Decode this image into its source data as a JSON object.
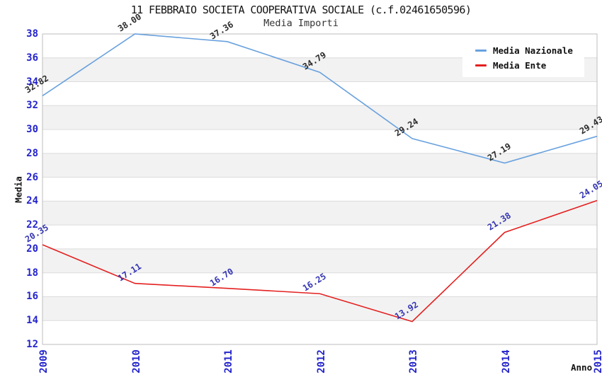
{
  "chart_data": {
    "type": "line",
    "title": "11 FEBBRAIO SOCIETA COOPERATIVA SOCIALE (c.f.02461650596)",
    "subtitle": "Media Importi",
    "xlabel": "Anno",
    "ylabel": "Media",
    "categories": [
      "2009",
      "2010",
      "2011",
      "2012",
      "2013",
      "2014",
      "2015"
    ],
    "series": [
      {
        "name": "Media Nazionale",
        "color": "#68a1de",
        "label_color": "#2b2b2b",
        "values": [
          32.82,
          38.0,
          37.36,
          34.79,
          29.24,
          27.19,
          29.43
        ]
      },
      {
        "name": "Media Ente",
        "color": "#e42020",
        "label_color": "#3333b3",
        "values": [
          20.35,
          17.11,
          16.7,
          16.25,
          13.92,
          21.38,
          24.05
        ]
      }
    ],
    "ylim": [
      12,
      38
    ],
    "yticks": [
      12,
      14,
      16,
      18,
      20,
      22,
      24,
      26,
      28,
      30,
      32,
      34,
      36,
      38
    ],
    "grid": "horizontal",
    "legend_position": "top-right",
    "style": {
      "band_gray": "#f2f2f2",
      "band_white": "#ffffff",
      "grid_color": "#dcdcdc",
      "border_color": "#bdbdbd",
      "tick_label_color": "#2424cc",
      "title_color": "#141414"
    }
  }
}
